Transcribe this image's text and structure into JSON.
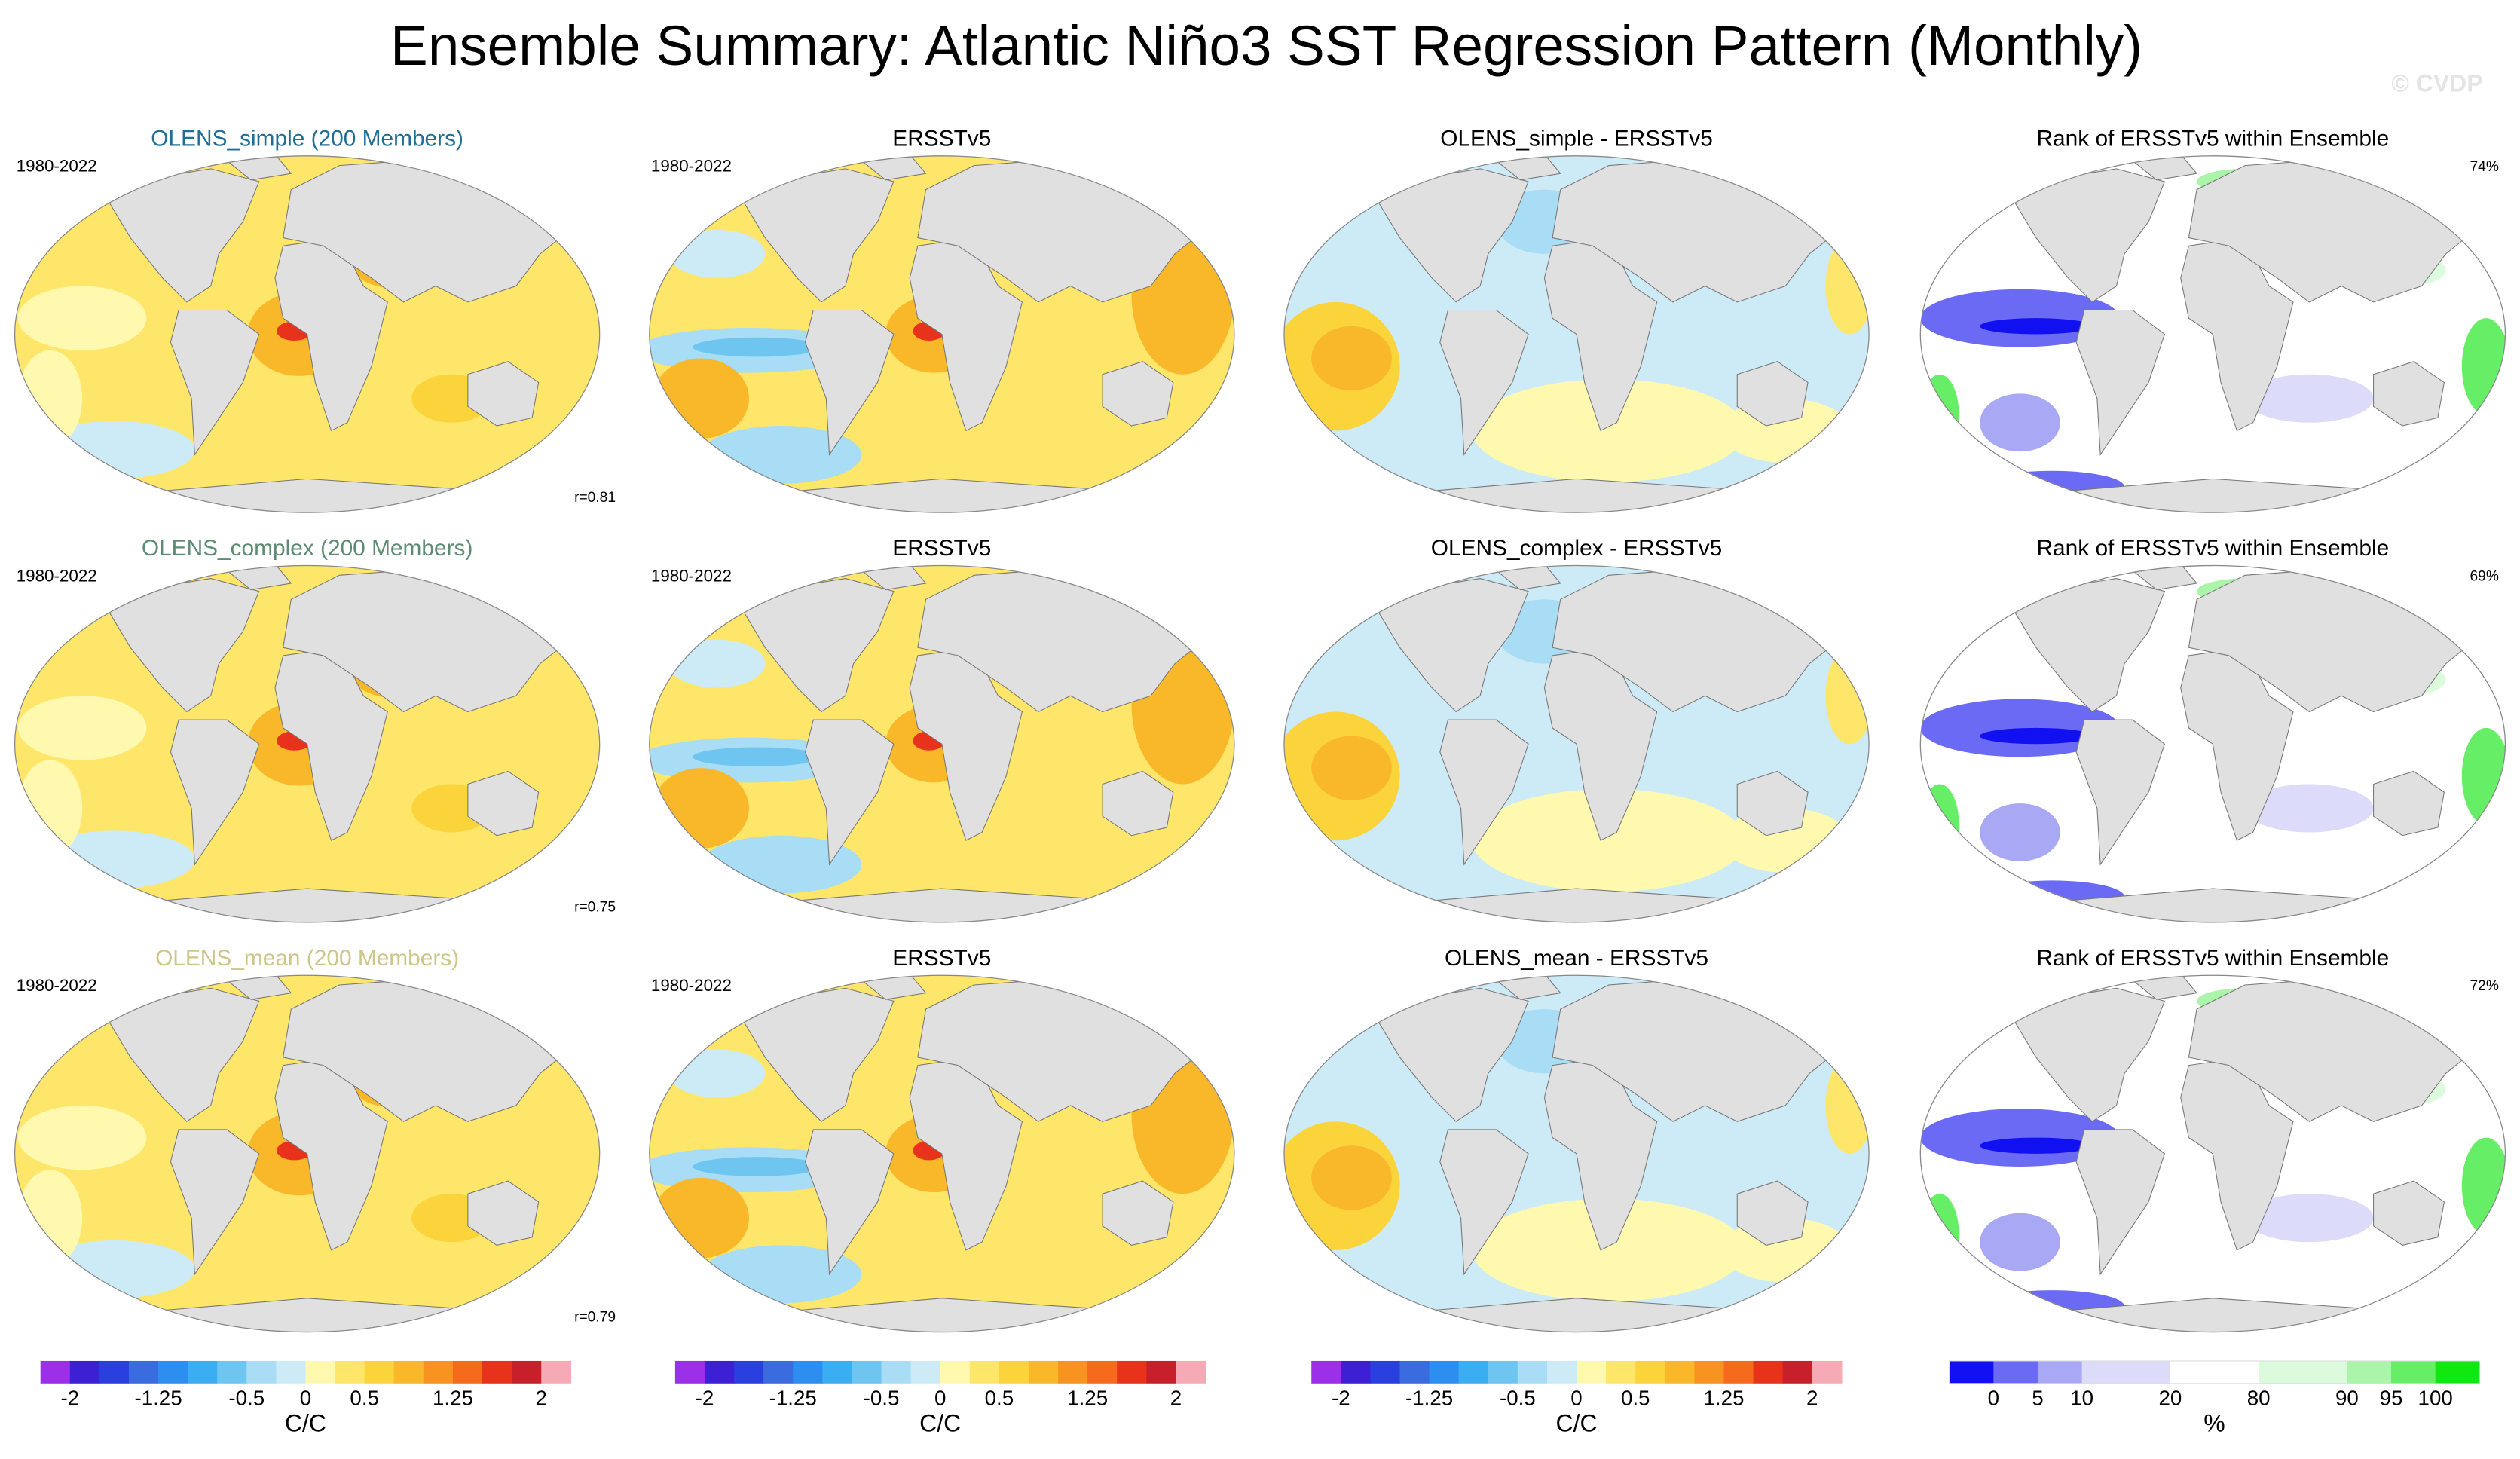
{
  "title": "Ensemble Summary: Atlantic Niño3 SST Regression Pattern (Monthly)",
  "watermark": "© CVDP",
  "panels": [
    [
      {
        "title": "OLENS_simple (200 Members)",
        "title_color": "#1f6e96",
        "period": "1980-2022",
        "stat": "r=0.81"
      },
      {
        "title": "ERSSTv5",
        "title_color": "#000000",
        "period": "1980-2022"
      },
      {
        "title": "OLENS_simple - ERSSTv5",
        "title_color": "#000000"
      },
      {
        "title": "Rank of ERSSTv5 within Ensemble",
        "title_color": "#000000",
        "stat": "74%"
      }
    ],
    [
      {
        "title": "OLENS_complex (200 Members)",
        "title_color": "#5e8c72",
        "period": "1980-2022",
        "stat": "r=0.75"
      },
      {
        "title": "ERSSTv5",
        "title_color": "#000000",
        "period": "1980-2022"
      },
      {
        "title": "OLENS_complex - ERSSTv5",
        "title_color": "#000000"
      },
      {
        "title": "Rank of ERSSTv5 within Ensemble",
        "title_color": "#000000",
        "stat": "69%"
      }
    ],
    [
      {
        "title": "OLENS_mean (200 Members)",
        "title_color": "#cdc589",
        "period": "1980-2022",
        "stat": "r=0.79"
      },
      {
        "title": "ERSSTv5",
        "title_color": "#000000",
        "period": "1980-2022"
      },
      {
        "title": "OLENS_mean - ERSSTv5",
        "title_color": "#000000"
      },
      {
        "title": "Rank of ERSSTv5 within Ensemble",
        "title_color": "#000000",
        "stat": "72%"
      }
    ]
  ],
  "colorbars": [
    {
      "colors": [
        "#9b30e8",
        "#3d1fd6",
        "#2a3fe0",
        "#3a6ce0",
        "#2e8ef0",
        "#3aaef0",
        "#6ec6f0",
        "#a9dcf5",
        "#cdeaf7",
        "#fff9b0",
        "#fde66a",
        "#fbd33a",
        "#f9b72a",
        "#f7941f",
        "#f56a1c",
        "#e8321c",
        "#c8202a",
        "#f5aab5"
      ],
      "xlim": [
        -2.25,
        2.25
      ],
      "xticks": [
        -2,
        -1.25,
        -0.5,
        0,
        0.5,
        1.25,
        2
      ],
      "unit": "C/C"
    },
    {
      "colors": [
        "#9b30e8",
        "#3d1fd6",
        "#2a3fe0",
        "#3a6ce0",
        "#2e8ef0",
        "#3aaef0",
        "#6ec6f0",
        "#a9dcf5",
        "#cdeaf7",
        "#fff9b0",
        "#fde66a",
        "#fbd33a",
        "#f9b72a",
        "#f7941f",
        "#f56a1c",
        "#e8321c",
        "#c8202a",
        "#f5aab5"
      ],
      "xlim": [
        -2.25,
        2.25
      ],
      "xticks": [
        -2,
        -1.25,
        -0.5,
        0,
        0.5,
        1.25,
        2
      ],
      "unit": "C/C"
    },
    {
      "colors": [
        "#9b30e8",
        "#3d1fd6",
        "#2a3fe0",
        "#3a6ce0",
        "#2e8ef0",
        "#3aaef0",
        "#6ec6f0",
        "#a9dcf5",
        "#cdeaf7",
        "#fff9b0",
        "#fde66a",
        "#fbd33a",
        "#f9b72a",
        "#f7941f",
        "#f56a1c",
        "#e8321c",
        "#c8202a",
        "#f5aab5"
      ],
      "xlim": [
        -2.25,
        2.25
      ],
      "xticks": [
        -2,
        -1.25,
        -0.5,
        0,
        0.5,
        1.25,
        2
      ],
      "unit": "C/C"
    },
    {
      "colors": [
        "#1010f0",
        "#6a6af5",
        "#a8a8f5",
        "#dcdcfa",
        "#ffffff",
        "#dcfadc",
        "#aaf5aa",
        "#66ee66",
        "#10e810"
      ],
      "xticks": [
        0,
        5,
        10,
        20,
        80,
        90,
        95,
        100
      ],
      "unit": "%"
    }
  ]
}
